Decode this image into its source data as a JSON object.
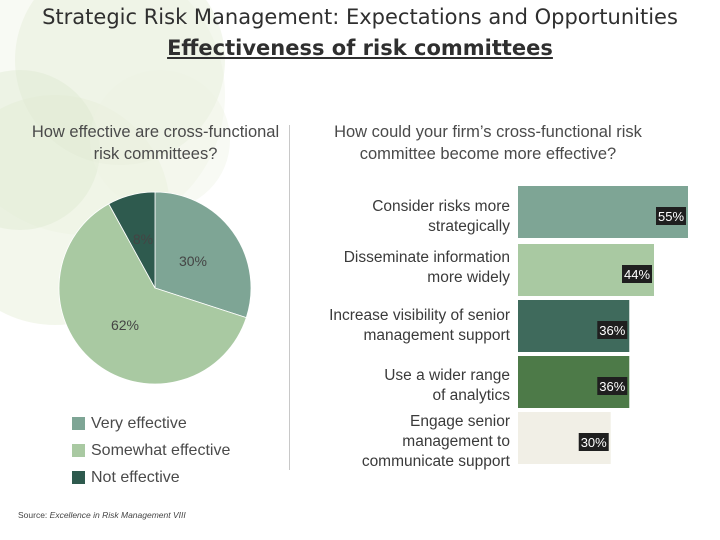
{
  "title": {
    "main": "Strategic Risk Management: Expectations and Opportunities",
    "sub": "Effectiveness of risk committees"
  },
  "source": {
    "prefix": "Source: ",
    "name": "Excellence in Risk Management VIII"
  },
  "chart_data": [
    {
      "type": "pie",
      "title": "How effective are cross-functional risk committees?",
      "labels": [
        "Very effective",
        "Somewhat effective",
        "Not effective"
      ],
      "values": [
        30,
        62,
        8
      ],
      "value_labels": [
        "30%",
        "62%",
        "8%"
      ],
      "colors": [
        "#7ea595",
        "#a9c9a2",
        "#2e5a4e"
      ],
      "legend": "bottom-left"
    },
    {
      "type": "bar",
      "orientation": "horizontal",
      "title": "How could your firm’s cross-functional risk committee become more effective?",
      "categories": [
        [
          "Consider risks more",
          "strategically"
        ],
        [
          "Disseminate information",
          "more widely"
        ],
        [
          "Increase visibility of senior",
          "management support"
        ],
        [
          "Use a wider range",
          "of analytics"
        ],
        [
          "Engage senior",
          "management to",
          "communicate support"
        ]
      ],
      "values": [
        55,
        44,
        36,
        36,
        30
      ],
      "value_labels": [
        "55%",
        "44%",
        "36%",
        "36%",
        "30%"
      ],
      "colors": [
        "#7ea595",
        "#a9c9a2",
        "#3f6a5c",
        "#4d7a48",
        "#f1efe6"
      ],
      "xlim": [
        0,
        55
      ]
    }
  ]
}
